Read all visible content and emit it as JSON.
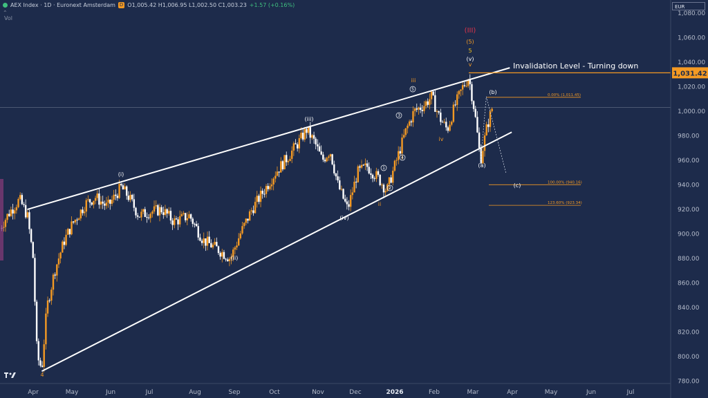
{
  "header": {
    "symbol": "AEX Index · 1D · Euronext Amsterdam",
    "badge": "D",
    "open": "1,005.42",
    "high": "1,006.95",
    "low": "1,002.50",
    "close": "1,003.23",
    "change": "+1.57 (+0.16%)",
    "ohlc_text": "O1,005.42 H1,006.95 L1,002.50 C1,003.23",
    "sub_text": "Vol"
  },
  "currency": "EUR",
  "price_badge": "1,031.42",
  "annotation": "Invalidation Level - Turning down",
  "chart_data": {
    "type": "candlestick",
    "title": "",
    "xlabel": "",
    "ylabel": "",
    "ylim": [
      778,
      1088
    ],
    "x_ticks": [
      "Apr",
      "May",
      "Jun",
      "Jul",
      "Aug",
      "Sep",
      "Oct",
      "Nov",
      "Dec",
      "2026",
      "Feb",
      "Mar",
      "Apr",
      "May",
      "Jun",
      "Jul"
    ],
    "y_ticks": [
      780,
      800,
      820,
      840,
      860,
      880,
      900,
      920,
      940,
      960,
      980,
      1000,
      1020,
      1040,
      1060,
      1080
    ],
    "current_price": 1003.23,
    "invalidation_level": 1031.42,
    "fib_levels": [
      {
        "label": "0.00% (1,011.45)",
        "value": 1011.45
      },
      {
        "label": "100.00% (940.16)",
        "value": 940.16
      },
      {
        "label": "123.60% (923.34)",
        "value": 923.34
      }
    ],
    "wave_labels": [
      {
        "text": "(III)",
        "color": "#e0334a",
        "x": 1.08,
        "y": 1083
      },
      {
        "text": "(5)",
        "color": "#f59a23",
        "x": 1.08,
        "y": 1071
      },
      {
        "text": "5",
        "color": "#f5c518",
        "x": 1.08,
        "y": 1059
      },
      {
        "text": "(v)",
        "color": "#ffffff",
        "x": 1.08,
        "y": 1048
      },
      {
        "text": "v",
        "color": "#f59a23",
        "x": 1.08,
        "y": 1041
      },
      {
        "text": "(i)",
        "color": "#ffffff",
        "x": 0.62,
        "y": 948
      },
      {
        "text": "(ii)",
        "color": "#ffffff",
        "x": 0.4,
        "y": 876
      },
      {
        "text": "(iii)",
        "color": "#ffffff",
        "x": 0.76,
        "y": 990
      },
      {
        "text": "(iv)",
        "color": "#ffffff",
        "x": 0.82,
        "y": 912
      },
      {
        "text": "i",
        "color": "#f59a23",
        "x": 0.93,
        "y": 962
      },
      {
        "text": "ii",
        "color": "#f59a23",
        "x": 0.94,
        "y": 924
      },
      {
        "text": "iii",
        "color": "#f59a23",
        "x": 1.04,
        "y": 1023
      },
      {
        "text": "iv",
        "color": "#f59a23",
        "x": 1.06,
        "y": 978
      },
      {
        "text": "(a)",
        "color": "#ffffff",
        "x": 1.11,
        "y": 955
      },
      {
        "text": "(b)",
        "color": "#ffffff",
        "x": 1.12,
        "y": 1015
      },
      {
        "text": "(c)",
        "color": "#ffffff",
        "x": 1.18,
        "y": 939
      },
      {
        "text": "4",
        "color": "#f59a23",
        "x": 0.05,
        "y": 784
      }
    ],
    "circled_labels": [
      {
        "text": "1",
        "x": 0.945,
        "y": 957
      },
      {
        "text": "2",
        "x": 0.955,
        "y": 932
      },
      {
        "text": "3",
        "x": 0.985,
        "y": 993
      },
      {
        "text": "4",
        "x": 0.995,
        "y": 963
      },
      {
        "text": "5",
        "x": 1.015,
        "y": 1017
      }
    ]
  },
  "colors": {
    "background": "#1d2b4b",
    "up": "#f59a23",
    "down": "#ffffff",
    "accent": "#f59a23",
    "axis_text": "#b5bccb"
  }
}
